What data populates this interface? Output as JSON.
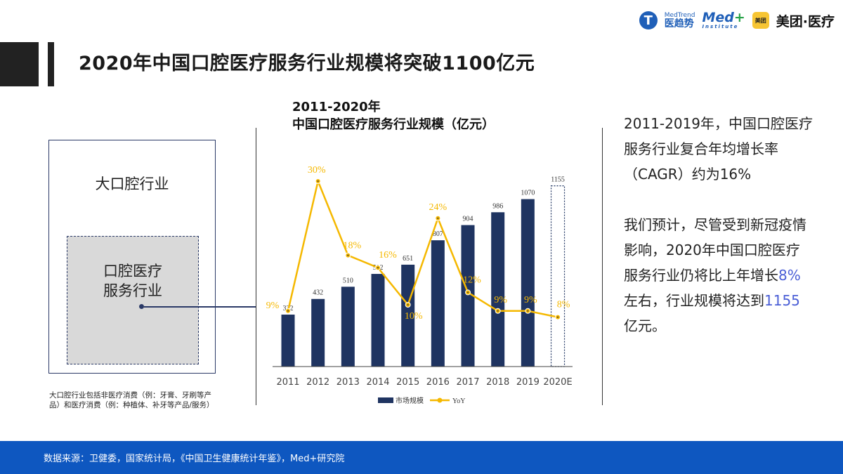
{
  "header": {
    "title": "2020年中国口腔医疗服务行业规模将突破1100亿元",
    "logos": {
      "medtrend_en": "MedTrend",
      "medtrend_cn": "医趋势",
      "medplus": "Med",
      "medplus_sub": "Institute",
      "meituan_badge": "美团",
      "meituan_name": "美团·医疗"
    }
  },
  "diagram": {
    "outer_label": "大口腔行业",
    "inner_label_line1": "口腔医疗",
    "inner_label_line2": "服务行业",
    "footnote": "大口腔行业包括非医疗消费（例：牙膏、牙刷等产品）和医疗消费（例：种植体、补牙等产品/服务）"
  },
  "chart_data": {
    "type": "bar",
    "title_line1": "2011-2020年",
    "title_line2": "中国口腔医疗服务行业规模（亿元）",
    "categories": [
      "2011",
      "2012",
      "2013",
      "2014",
      "2015",
      "2016",
      "2017",
      "2018",
      "2019",
      "2020E"
    ],
    "series": [
      {
        "name": "市场规模",
        "type": "bar",
        "values": [
          332,
          432,
          510,
          592,
          651,
          807,
          904,
          986,
          1070,
          1155
        ],
        "color": "#1f3461",
        "forecast_last": true
      },
      {
        "name": "YoY",
        "type": "line",
        "values": [
          9,
          30,
          18,
          16,
          10,
          24,
          12,
          9,
          9,
          8
        ],
        "labels": [
          "9%",
          "30%",
          "18%",
          "16%",
          "10%",
          "24%",
          "12%",
          "9%",
          "9%",
          "8%"
        ],
        "color": "#f5b800"
      }
    ],
    "ylim_bar": [
      0,
      1400
    ],
    "ylim_line": [
      0,
      40
    ],
    "grid": false,
    "legend": "bottom"
  },
  "commentary": {
    "p1": "2011-2019年，中国口腔医疗服务行业复合年均增长率（CAGR）约为16%",
    "p2_a": "我们预计，尽管受到新冠疫情影响，2020年中国口腔医疗服务行业仍将比上年增长",
    "p2_hl1": "8%",
    "p2_b": "左右，行业规模将达到",
    "p2_hl2": "1155",
    "p2_c": "亿元。"
  },
  "footer": {
    "source": "数据来源：卫健委，国家统计局，《中国卫生健康统计年鉴》，Med+研究院"
  },
  "colors": {
    "accent": "#0e57c0",
    "bar": "#1f3461",
    "line": "#f5b800",
    "highlight": "#4a5ed6"
  }
}
